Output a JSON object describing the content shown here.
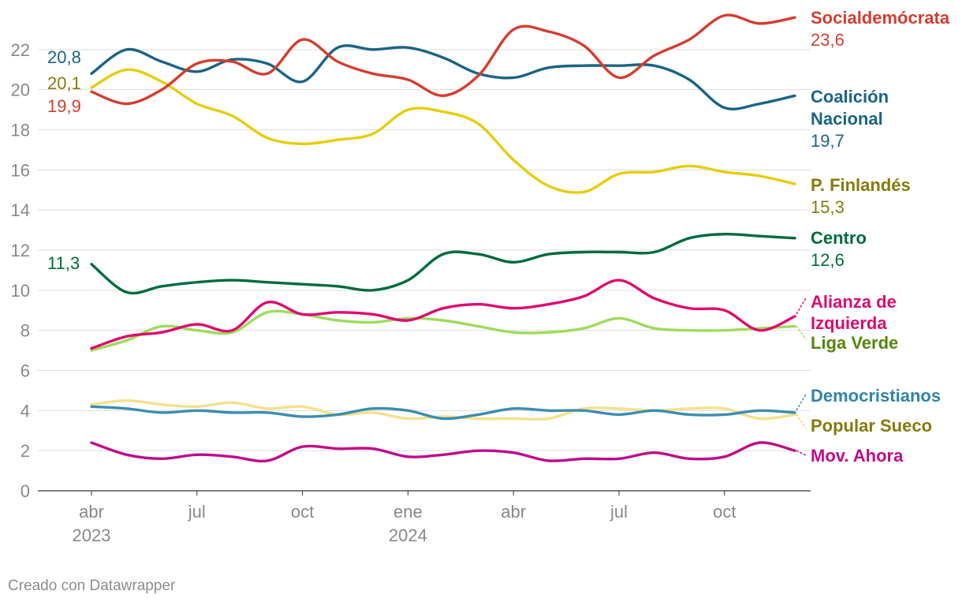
{
  "chart_data": {
    "type": "line",
    "title": "",
    "xlabel": "",
    "ylabel": "",
    "ylim": [
      0,
      24
    ],
    "yticks": [
      0,
      2,
      4,
      6,
      8,
      10,
      12,
      14,
      16,
      18,
      20,
      22
    ],
    "x_range": [
      0,
      20.5
    ],
    "x_ticks": [
      {
        "x": 0,
        "label": "abr",
        "year": "2023"
      },
      {
        "x": 3,
        "label": "jul",
        "year": ""
      },
      {
        "x": 6,
        "label": "oct",
        "year": ""
      },
      {
        "x": 9,
        "label": "ene",
        "year": "2024"
      },
      {
        "x": 12,
        "label": "abr",
        "year": ""
      },
      {
        "x": 15,
        "label": "jul",
        "year": ""
      },
      {
        "x": 18,
        "label": "oct",
        "year": ""
      }
    ],
    "x_unit": "months since April 2023",
    "series": [
      {
        "name": "Socialdemócrata",
        "color": "#d43d2f",
        "label_color": "#d43d2f",
        "end_value": "23,6",
        "start_value": "19,9",
        "x": [
          0,
          1,
          2,
          3,
          4,
          5,
          6,
          7,
          8,
          9,
          10,
          11,
          12,
          13,
          14,
          15,
          16,
          17,
          18,
          19,
          20
        ],
        "y": [
          19.9,
          19.3,
          20.0,
          21.3,
          21.4,
          20.8,
          22.5,
          21.4,
          20.8,
          20.5,
          19.7,
          20.7,
          23.0,
          22.9,
          22.2,
          20.6,
          21.7,
          22.5,
          23.7,
          23.3,
          23.6
        ]
      },
      {
        "name": "Coalición Nacional",
        "color": "#1a6484",
        "label_color": "#1a6484",
        "end_value": "19,7",
        "start_value": "20,8",
        "x": [
          0,
          1,
          2,
          3,
          4,
          5,
          6,
          7,
          8,
          9,
          10,
          11,
          12,
          13,
          14,
          15,
          16,
          17,
          18,
          19,
          20
        ],
        "y": [
          20.8,
          22.0,
          21.4,
          20.9,
          21.5,
          21.3,
          20.4,
          22.1,
          22.0,
          22.1,
          21.6,
          20.8,
          20.6,
          21.1,
          21.2,
          21.2,
          21.2,
          20.5,
          19.1,
          19.3,
          19.7
        ]
      },
      {
        "name": "P. Finlandés",
        "color": "#e7cd0c",
        "label_color": "#877a09",
        "end_value": "15,3",
        "start_value": "20,1",
        "x": [
          0,
          1,
          2,
          3,
          4,
          5,
          6,
          7,
          8,
          9,
          10,
          11,
          12,
          13,
          14,
          15,
          16,
          17,
          18,
          19,
          20
        ],
        "y": [
          20.1,
          21.0,
          20.4,
          19.3,
          18.7,
          17.6,
          17.3,
          17.5,
          17.8,
          19.0,
          18.9,
          18.3,
          16.5,
          15.2,
          14.9,
          15.8,
          15.9,
          16.2,
          15.9,
          15.7,
          15.3
        ]
      },
      {
        "name": "Centro",
        "color": "#006b3c",
        "label_color": "#006b3c",
        "end_value": "12,6",
        "start_value": "11,3",
        "x": [
          0,
          1,
          2,
          3,
          4,
          5,
          6,
          7,
          8,
          9,
          10,
          11,
          12,
          13,
          14,
          15,
          16,
          17,
          18,
          19,
          20
        ],
        "y": [
          11.3,
          9.9,
          10.2,
          10.4,
          10.5,
          10.4,
          10.3,
          10.2,
          10.0,
          10.5,
          11.8,
          11.8,
          11.4,
          11.8,
          11.9,
          11.9,
          11.9,
          12.6,
          12.8,
          12.7,
          12.6
        ]
      },
      {
        "name": "Alianza de Izquierda",
        "color": "#de0a6e",
        "label_color": "#de0a6e",
        "end_value": "",
        "start_value": "",
        "x": [
          0,
          1,
          2,
          3,
          4,
          5,
          6,
          7,
          8,
          9,
          10,
          11,
          12,
          13,
          14,
          15,
          16,
          17,
          18,
          19,
          20
        ],
        "y": [
          7.1,
          7.7,
          7.9,
          8.3,
          8.0,
          9.4,
          8.8,
          8.9,
          8.8,
          8.5,
          9.1,
          9.3,
          9.1,
          9.3,
          9.7,
          10.5,
          9.6,
          9.1,
          9.0,
          8.0,
          8.7
        ]
      },
      {
        "name": "Liga Verde",
        "color": "#9ddc5c",
        "label_color": "#54860d",
        "end_value": "",
        "start_value": "",
        "x": [
          0,
          1,
          2,
          3,
          4,
          5,
          6,
          7,
          8,
          9,
          10,
          11,
          12,
          13,
          14,
          15,
          16,
          17,
          18,
          19,
          20
        ],
        "y": [
          7.0,
          7.5,
          8.2,
          8.0,
          7.9,
          8.9,
          8.8,
          8.5,
          8.4,
          8.6,
          8.5,
          8.2,
          7.9,
          7.9,
          8.1,
          8.6,
          8.1,
          8.0,
          8.0,
          8.1,
          8.2
        ]
      },
      {
        "name": "Democristianos",
        "color": "#3b8db0",
        "label_color": "#2f84ab",
        "end_value": "",
        "start_value": "",
        "x": [
          0,
          1,
          2,
          3,
          4,
          5,
          6,
          7,
          8,
          9,
          10,
          11,
          12,
          13,
          14,
          15,
          16,
          17,
          18,
          19,
          20
        ],
        "y": [
          4.2,
          4.1,
          3.9,
          4.0,
          3.9,
          3.9,
          3.7,
          3.8,
          4.1,
          4.0,
          3.6,
          3.8,
          4.1,
          4.0,
          4.0,
          3.8,
          4.0,
          3.8,
          3.8,
          4.0,
          3.9
        ]
      },
      {
        "name": "Popular Sueco",
        "color": "#f7e08c",
        "label_color": "#877a09",
        "end_value": "",
        "start_value": "",
        "x": [
          0,
          1,
          2,
          3,
          4,
          5,
          6,
          7,
          8,
          9,
          10,
          11,
          12,
          13,
          14,
          15,
          16,
          17,
          18,
          19,
          20
        ],
        "y": [
          4.3,
          4.5,
          4.3,
          4.2,
          4.4,
          4.1,
          4.2,
          3.8,
          3.9,
          3.6,
          3.7,
          3.6,
          3.6,
          3.6,
          4.1,
          4.1,
          4.0,
          4.1,
          4.1,
          3.6,
          3.8
        ]
      },
      {
        "name": "Mov. Ahora",
        "color": "#bf0c8b",
        "label_color": "#bf0c8b",
        "end_value": "",
        "start_value": "",
        "x": [
          0,
          1,
          2,
          3,
          4,
          5,
          6,
          7,
          8,
          9,
          10,
          11,
          12,
          13,
          14,
          15,
          16,
          17,
          18,
          19,
          20
        ],
        "y": [
          2.4,
          1.8,
          1.6,
          1.8,
          1.7,
          1.5,
          2.2,
          2.1,
          2.1,
          1.7,
          1.8,
          2.0,
          1.9,
          1.5,
          1.6,
          1.6,
          1.9,
          1.6,
          1.7,
          2.4,
          2.0
        ]
      }
    ]
  },
  "labels": {
    "socialdemocrata": {
      "name": "Socialdemócrata",
      "value": "23,6"
    },
    "coalicion1": "Coalición",
    "coalicion2": "Nacional",
    "coalicion_value": "19,7",
    "finlandes": {
      "name": "P. Finlandés",
      "value": "15,3"
    },
    "centro": {
      "name": "Centro",
      "value": "12,6"
    },
    "alianza1": "Alianza de",
    "alianza2": "Izquierda",
    "liga": "Liga Verde",
    "democristianos": "Democristianos",
    "popular": "Popular Sueco",
    "mov": "Mov. Ahora"
  },
  "start_labels": {
    "coalicion": "20,8",
    "finlandes": "20,1",
    "socialdemocrata": "19,9",
    "centro": "11,3"
  },
  "footer": {
    "credit": "Creado con Datawrapper"
  }
}
